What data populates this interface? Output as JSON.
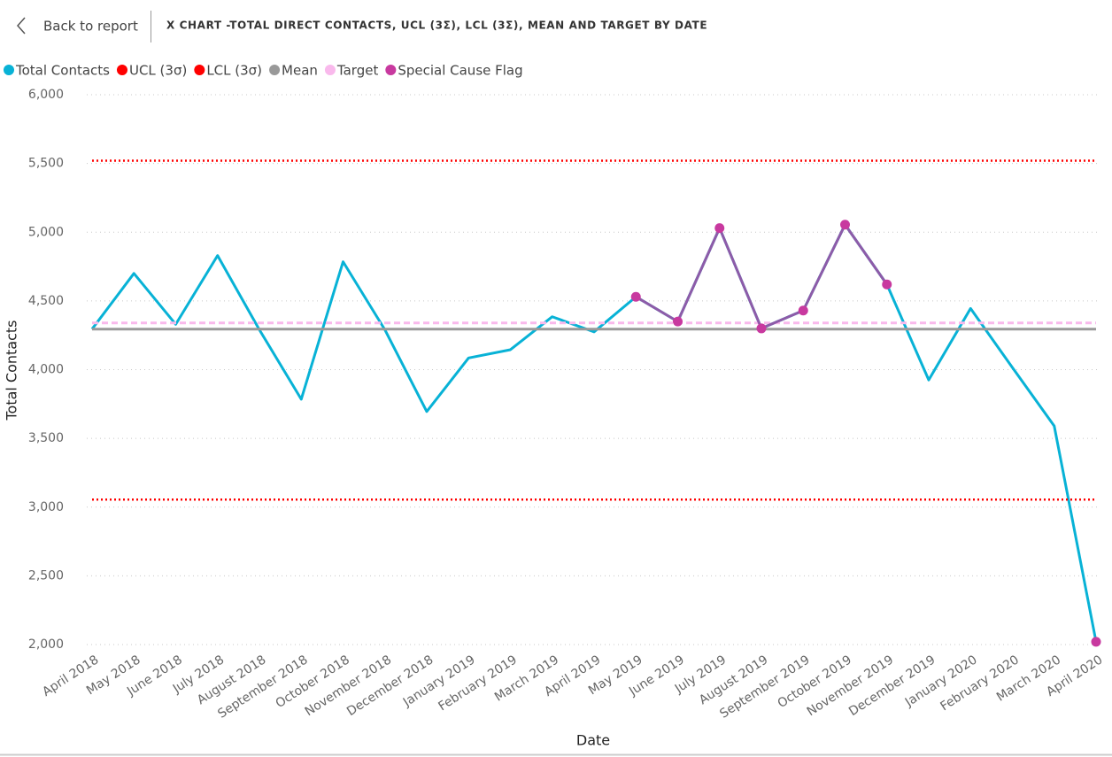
{
  "header": {
    "back": "Back to report"
  },
  "chart_data": {
    "type": "line",
    "title": "X CHART -TOTAL DIRECT CONTACTS, UCL (3Σ), LCL (3Σ), MEAN AND TARGET BY DATE",
    "x_label": "Date",
    "y_label": "Total Contacts",
    "categories": [
      "April 2018",
      "May 2018",
      "June 2018",
      "July 2018",
      "August 2018",
      "September 2018",
      "October 2018",
      "November 2018",
      "December 2018",
      "January 2019",
      "February 2019",
      "March 2019",
      "April 2019",
      "May 2019",
      "June 2019",
      "July 2019",
      "August 2019",
      "September 2019",
      "October 2019",
      "November 2019",
      "December 2019",
      "January 2020",
      "February 2020",
      "March 2020",
      "April 2020"
    ],
    "ylim": [
      2000,
      6000
    ],
    "yticks": [
      {
        "value": 2000,
        "label": "2,000"
      },
      {
        "value": 2500,
        "label": "2,500"
      },
      {
        "value": 3000,
        "label": "3,000"
      },
      {
        "value": 3500,
        "label": "3,500"
      },
      {
        "value": 4000,
        "label": "4,000"
      },
      {
        "value": 4500,
        "label": "4,500"
      },
      {
        "value": 5000,
        "label": "5,000"
      },
      {
        "value": 5500,
        "label": "5,500"
      },
      {
        "value": 6000,
        "label": "6,000"
      }
    ],
    "grid": true,
    "legend": "top-left",
    "series": [
      {
        "name": "Total Contacts",
        "color": "#08b2d6",
        "style": "solid",
        "values": [
          4295,
          4700,
          4330,
          4830,
          4290,
          3785,
          4785,
          4290,
          3695,
          4085,
          4145,
          4385,
          4275,
          4530,
          4350,
          5030,
          4300,
          4430,
          5055,
          4620,
          3925,
          4445,
          4015,
          3590,
          2020
        ]
      },
      {
        "name": "UCL (3σ)",
        "color": "#ff0000",
        "style": "dotted",
        "values": [
          5520,
          5520,
          5520,
          5520,
          5520,
          5520,
          5520,
          5520,
          5520,
          5520,
          5520,
          5520,
          5520,
          5520,
          5520,
          5520,
          5520,
          5520,
          5520,
          5520,
          5520,
          5520,
          5520,
          5520,
          5520
        ]
      },
      {
        "name": "LCL (3σ)",
        "color": "#ff0000",
        "style": "dotted",
        "values": [
          3055,
          3055,
          3055,
          3055,
          3055,
          3055,
          3055,
          3055,
          3055,
          3055,
          3055,
          3055,
          3055,
          3055,
          3055,
          3055,
          3055,
          3055,
          3055,
          3055,
          3055,
          3055,
          3055,
          3055,
          3055
        ]
      },
      {
        "name": "Mean",
        "color": "#999999",
        "style": "solid",
        "values": [
          4295,
          4295,
          4295,
          4295,
          4295,
          4295,
          4295,
          4295,
          4295,
          4295,
          4295,
          4295,
          4295,
          4295,
          4295,
          4295,
          4295,
          4295,
          4295,
          4295,
          4295,
          4295,
          4295,
          4295,
          4295
        ]
      },
      {
        "name": "Target",
        "color": "#f9b9ec",
        "style": "dashed",
        "values": [
          4340,
          4340,
          4340,
          4340,
          4340,
          4340,
          4340,
          4340,
          4340,
          4340,
          4340,
          4340,
          4340,
          4340,
          4340,
          4340,
          4340,
          4340,
          4340,
          4340,
          4340,
          4340,
          4340,
          4340,
          4340
        ]
      },
      {
        "name": "Special Cause Flag",
        "color": "#c8399f",
        "line_color": "#8e5ba8",
        "style": "solid",
        "markers": true,
        "values": [
          null,
          null,
          null,
          null,
          null,
          null,
          null,
          null,
          null,
          null,
          null,
          null,
          null,
          4530,
          4350,
          5030,
          4300,
          4430,
          5055,
          4620,
          null,
          null,
          null,
          null,
          2020
        ]
      }
    ]
  }
}
